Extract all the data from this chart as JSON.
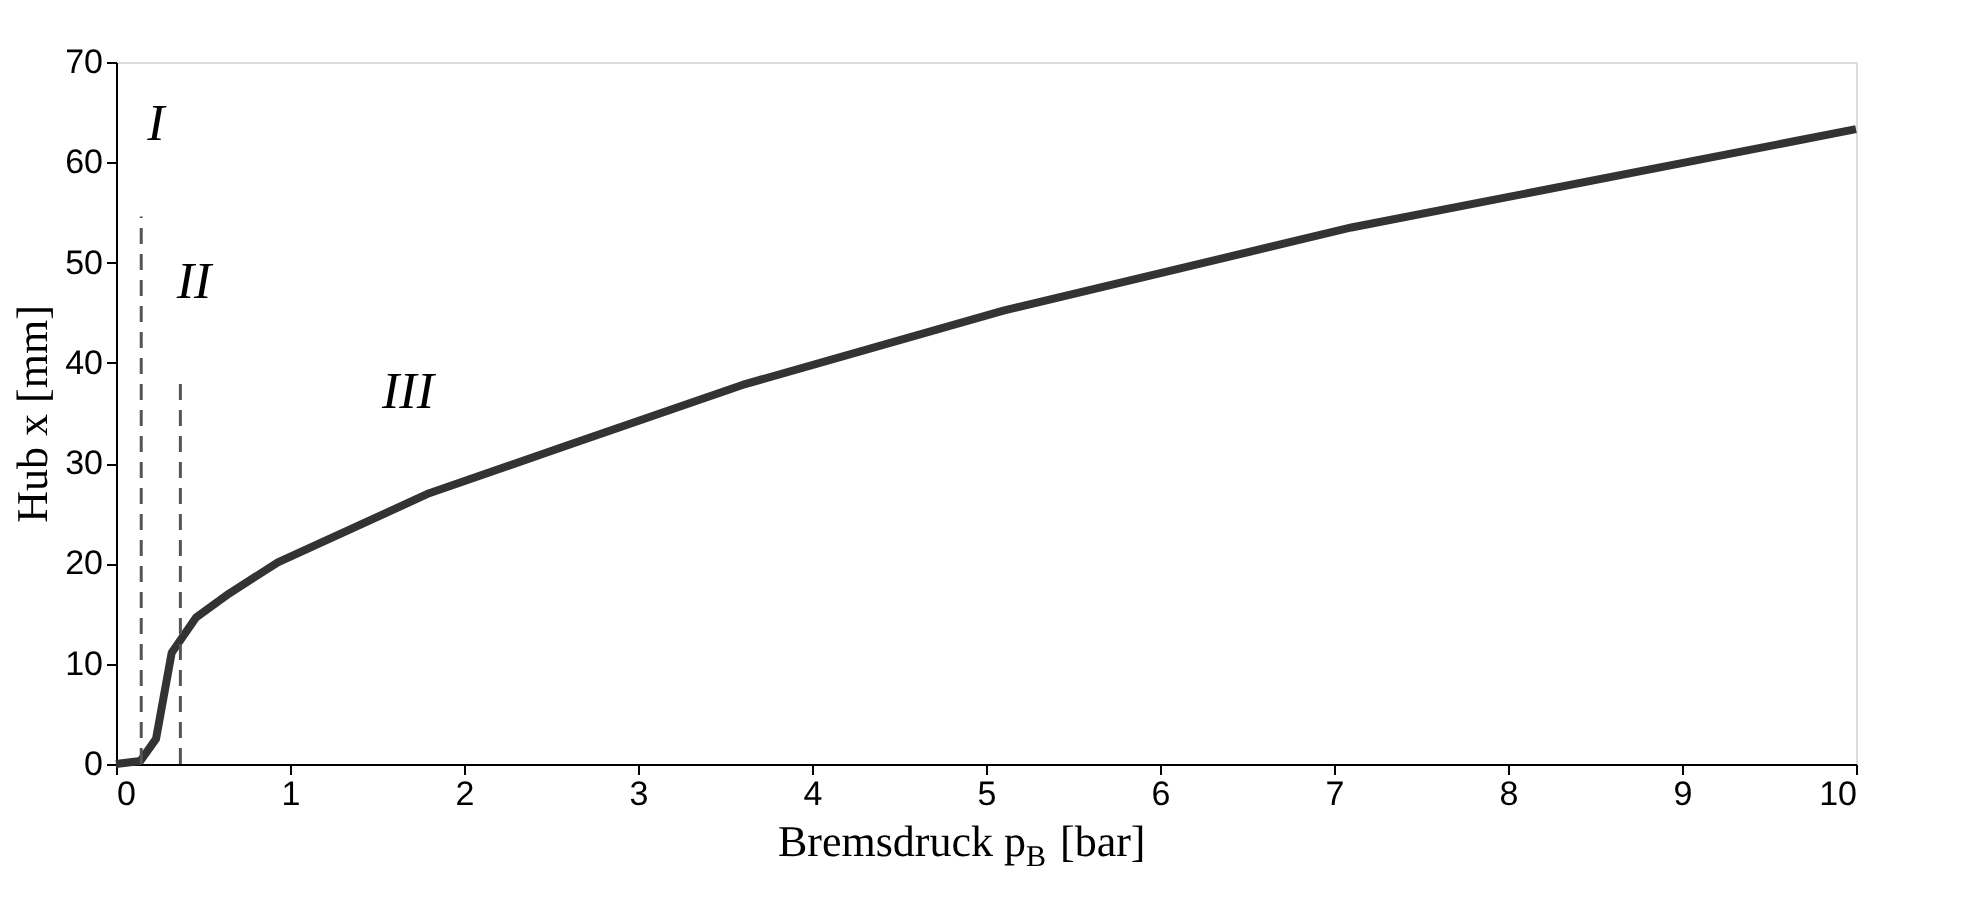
{
  "chart_data": {
    "type": "line",
    "xlabel": "Bremsdruck p$_{B}$ [bar]",
    "ylabel": "Hub x [mm]",
    "xlim": [
      0,
      10
    ],
    "xticks": [
      0,
      1,
      2,
      3,
      4,
      5,
      6,
      7,
      8,
      9,
      10
    ],
    "ylim": [
      0,
      70
    ],
    "yticks": [
      0,
      10,
      20,
      30,
      40,
      50,
      60,
      70
    ],
    "grid": false,
    "marker": "none",
    "series": [
      {
        "color": "#333333",
        "line_style": "solid",
        "x": [
          0,
          0.14,
          0.23,
          0.32,
          0.46,
          0.65,
          0.93,
          1.8,
          2.6,
          3.6,
          5.1,
          7.1,
          10
        ],
        "values": [
          0,
          0.3,
          2.5,
          11.1,
          14.6,
          17,
          20.1,
          27,
          31.8,
          37.8,
          45.2,
          53.5,
          63.3
        ]
      },
      {
        "color": "#555555",
        "line_style": "dashed",
        "x": [
          0.145,
          0.145
        ],
        "values": [
          0,
          54.6
        ]
      },
      {
        "color": "#555555",
        "line_style": "dashed",
        "x": [
          0.37,
          0.37
        ],
        "values": [
          0,
          38.1
        ]
      }
    ],
    "annotations": [
      "I",
      "II",
      "III"
    ]
  }
}
